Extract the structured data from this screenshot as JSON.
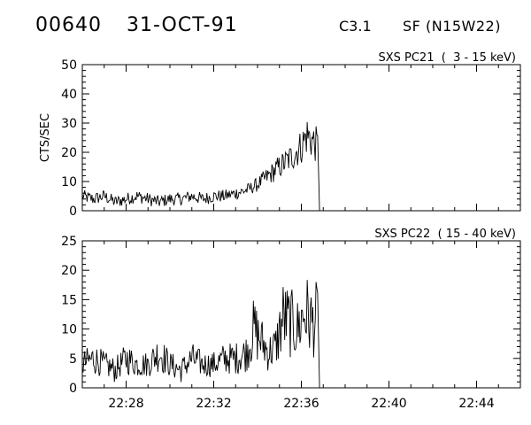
{
  "header": {
    "event_id": "00640",
    "date": "31-OCT-91",
    "flare_class": "C3.1",
    "location": "SF (N15W22)"
  },
  "chart_data": [
    {
      "type": "line",
      "title": "SXS PC21  (  3 - 15 keV)",
      "xlabel": "",
      "ylabel": "CTS/SEC",
      "xlim": [
        "22:26",
        "22:46"
      ],
      "ylim": [
        0,
        50
      ],
      "yticks": [
        "0",
        "10",
        "20",
        "30",
        "40",
        "50"
      ],
      "x": [
        "22:26:00",
        "22:26:30",
        "22:27:00",
        "22:27:30",
        "22:28:00",
        "22:28:30",
        "22:29:00",
        "22:29:30",
        "22:30:00",
        "22:30:30",
        "22:31:00",
        "22:31:30",
        "22:32:00",
        "22:32:30",
        "22:33:00",
        "22:33:30",
        "22:34:00",
        "22:34:30",
        "22:35:00",
        "22:35:30",
        "22:36:00",
        "22:36:15",
        "22:36:30",
        "22:36:45",
        "22:36:50"
      ],
      "values": [
        5,
        4,
        5,
        3,
        4,
        5,
        4,
        3,
        4,
        4,
        5,
        4,
        5,
        5,
        6,
        7,
        9,
        12,
        15,
        18,
        22,
        26,
        24,
        22,
        0
      ],
      "series_name": ""
    },
    {
      "type": "line",
      "title": "SXS PC22  ( 15 - 40 keV)",
      "xlabel": "",
      "ylabel": "",
      "xlim": [
        "22:26",
        "22:46"
      ],
      "ylim": [
        0,
        25
      ],
      "yticks": [
        "0",
        "5",
        "10",
        "15",
        "20",
        "25"
      ],
      "x": [
        "22:26:00",
        "22:26:30",
        "22:27:00",
        "22:27:30",
        "22:28:00",
        "22:28:30",
        "22:29:00",
        "22:29:30",
        "22:30:00",
        "22:30:30",
        "22:31:00",
        "22:31:30",
        "22:32:00",
        "22:32:30",
        "22:33:00",
        "22:33:30",
        "22:33:50",
        "22:34:10",
        "22:34:30",
        "22:34:50",
        "22:35:10",
        "22:35:30",
        "22:35:50",
        "22:36:10",
        "22:36:30",
        "22:36:45",
        "22:36:50"
      ],
      "values": [
        4,
        5,
        4,
        3,
        5,
        4,
        4,
        6,
        4,
        3,
        5,
        4,
        4,
        5,
        5,
        6,
        10,
        8,
        6,
        7,
        12,
        11,
        10,
        13,
        11,
        12,
        0
      ],
      "series_name": ""
    }
  ],
  "x_tick_labels": [
    "22:28",
    "22:32",
    "22:36",
    "22:40",
    "22:44"
  ]
}
